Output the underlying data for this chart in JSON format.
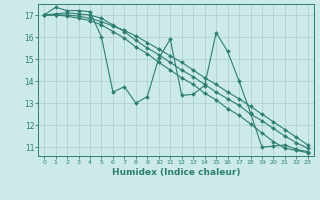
{
  "xlabel": "Humidex (Indice chaleur)",
  "bg_color": "#cceae8",
  "grid_color": "#aaccca",
  "line_color": "#2d7d72",
  "xlim": [
    -0.5,
    23.5
  ],
  "ylim": [
    10.6,
    17.5
  ],
  "yticks": [
    11,
    12,
    13,
    14,
    15,
    16,
    17
  ],
  "xticks": [
    0,
    1,
    2,
    3,
    4,
    5,
    6,
    7,
    8,
    9,
    10,
    11,
    12,
    13,
    14,
    15,
    16,
    17,
    18,
    19,
    20,
    21,
    22,
    23
  ],
  "series": [
    [
      17.0,
      17.35,
      17.2,
      17.2,
      17.15,
      16.0,
      13.5,
      13.75,
      13.0,
      13.3,
      15.05,
      15.9,
      13.35,
      13.4,
      13.8,
      16.2,
      15.35,
      14.0,
      12.55,
      11.0,
      11.05,
      11.1,
      10.9,
      10.8
    ],
    [
      17.0,
      17.05,
      17.1,
      17.05,
      17.0,
      16.85,
      16.55,
      16.25,
      15.85,
      15.5,
      15.2,
      14.85,
      14.5,
      14.2,
      13.85,
      13.5,
      13.2,
      12.9,
      12.5,
      12.2,
      11.85,
      11.5,
      11.2,
      10.95
    ],
    [
      17.0,
      17.0,
      17.0,
      16.95,
      16.85,
      16.7,
      16.5,
      16.3,
      16.05,
      15.75,
      15.45,
      15.15,
      14.85,
      14.5,
      14.15,
      13.85,
      13.5,
      13.2,
      12.85,
      12.5,
      12.15,
      11.8,
      11.45,
      11.1
    ],
    [
      17.0,
      17.0,
      16.95,
      16.85,
      16.75,
      16.55,
      16.25,
      15.95,
      15.55,
      15.25,
      14.85,
      14.5,
      14.15,
      13.85,
      13.45,
      13.15,
      12.75,
      12.45,
      12.05,
      11.65,
      11.25,
      10.95,
      10.85,
      10.75
    ]
  ]
}
